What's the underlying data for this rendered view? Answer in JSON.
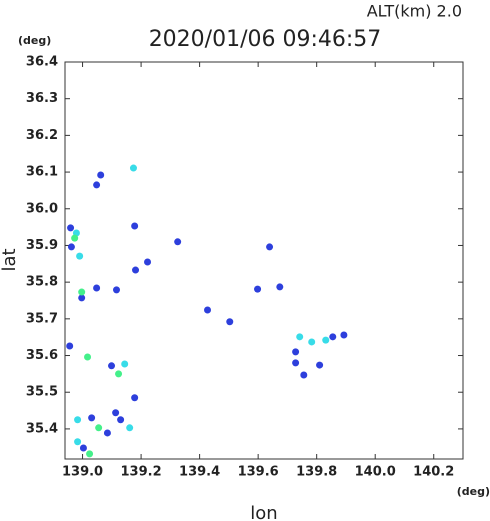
{
  "chart_data": {
    "type": "scatter",
    "title": "2020/01/06 09:46:57",
    "subtitle": "ALT(km) 2.0",
    "y_unit": "(deg)",
    "x_unit": "(deg)",
    "xlabel": "lon",
    "ylabel": "lat",
    "xlim": [
      138.94,
      140.3
    ],
    "ylim": [
      35.318,
      36.4
    ],
    "xticks": [
      {
        "value": 139.0,
        "label": "139.0"
      },
      139.2,
      139.4,
      139.6,
      139.8,
      {
        "value": 140.0,
        "label": "140.0"
      },
      140.2
    ],
    "yticks": [
      36.4,
      36.3,
      36.2,
      36.1,
      {
        "value": 36.0,
        "label": "36.0"
      },
      35.9,
      35.8,
      35.7,
      35.6,
      35.5,
      35.4
    ],
    "series": [
      {
        "color": "#2d3fdc",
        "x": [
          138.959,
          138.962,
          139.048,
          138.997,
          139.048,
          139.062,
          139.116,
          139.178,
          139.222,
          139.181,
          139.325,
          139.427,
          139.503,
          139.598,
          139.674,
          139.639,
          138.956,
          139.099,
          139.178,
          139.031,
          139.085,
          139.113,
          139.13,
          139.003,
          139.855,
          139.893,
          139.728,
          139.81,
          139.756,
          139.728
        ],
        "y": [
          35.948,
          35.896,
          35.784,
          35.757,
          36.065,
          36.092,
          35.779,
          35.953,
          35.855,
          35.833,
          35.91,
          35.724,
          35.692,
          35.781,
          35.787,
          35.896,
          35.626,
          35.572,
          35.485,
          35.43,
          35.389,
          35.444,
          35.425,
          35.348,
          35.651,
          35.656,
          35.58,
          35.574,
          35.547,
          35.61
        ]
      },
      {
        "color": "#38dce8",
        "x": [
          138.979,
          138.99,
          139.174,
          139.144,
          138.983,
          139.161,
          138.983,
          139.742,
          139.783,
          139.831
        ],
        "y": [
          35.934,
          35.871,
          36.111,
          35.577,
          35.425,
          35.403,
          35.365,
          35.651,
          35.637,
          35.642
        ]
      },
      {
        "color": "#44f08a",
        "x": [
          138.973,
          138.997,
          139.017,
          139.123,
          139.055,
          139.024
        ],
        "y": [
          35.92,
          35.773,
          35.596,
          35.55,
          35.403,
          35.332
        ]
      }
    ]
  }
}
